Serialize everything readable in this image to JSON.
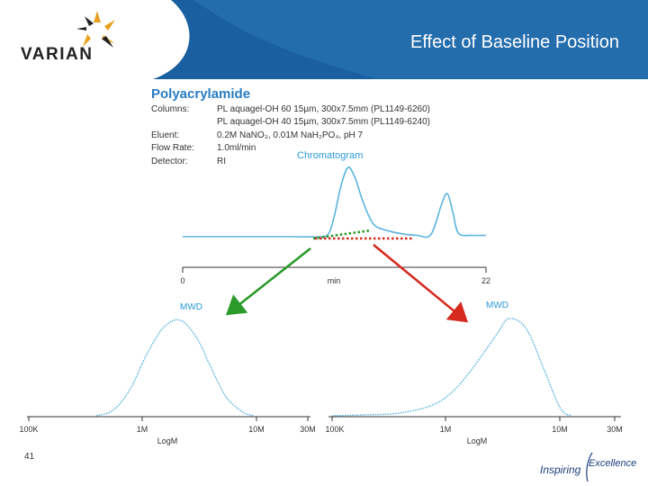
{
  "slide": {
    "title": "Effect of Baseline Position",
    "logo_text": "VARIAN",
    "page_number": "41",
    "footer_logo_word1": "Inspiring",
    "footer_logo_word2": "Excellence"
  },
  "info": {
    "title": "Polyacrylamide",
    "rows": [
      {
        "label": "Columns:",
        "value": "PL aquagel-OH 60 15µm, 300x7.5mm (PL1149-6260)"
      },
      {
        "label": "",
        "value": "PL aquagel-OH 40 15µm, 300x7.5mm (PL1149-6240)"
      },
      {
        "label": "Eluent:",
        "value": "0.2M NaNO₃, 0.01M NaH₂PO₄, pH 7"
      },
      {
        "label": "Flow Rate:",
        "value": "1.0ml/min"
      },
      {
        "label": "Detector:",
        "value": "RI"
      }
    ]
  },
  "colors": {
    "header_blue": "#1a5fa0",
    "trace_blue": "#5ab4e0",
    "title_blue": "#2a7cc0",
    "label_blue": "#2a9ad8",
    "green_arrow": "#2a9a2a",
    "red_arrow": "#d62a1e"
  },
  "chart_data": [
    {
      "type": "line",
      "title": "Chromatogram",
      "xlabel": "min",
      "xlim": [
        0,
        22
      ],
      "x_ticks": [
        "0",
        "22"
      ],
      "series": [
        {
          "x": [
            0,
            4,
            8,
            10,
            10.6,
            11,
            11.5,
            12,
            12.5,
            13,
            13.5,
            14,
            15,
            16,
            17,
            18,
            18.8,
            19.2,
            19.6,
            20,
            21,
            22
          ],
          "y": [
            0.0,
            0.0,
            0.0,
            0.0,
            0.05,
            0.3,
            0.75,
            1.0,
            0.85,
            0.55,
            0.3,
            0.15,
            0.08,
            0.04,
            0.02,
            0.03,
            0.48,
            0.62,
            0.35,
            0.05,
            0.02,
            0.02
          ]
        }
      ],
      "annotations": [
        "green dotted baseline",
        "red dotted baseline"
      ]
    },
    {
      "type": "line",
      "title": "MWD",
      "xlabel": "LogM",
      "x_ticks": [
        "100K",
        "1M",
        "10M",
        "30M"
      ],
      "xlim": [
        5,
        7.477
      ],
      "series": [
        {
          "x": [
            5.6,
            5.75,
            5.9,
            6.05,
            6.2,
            6.35,
            6.5,
            6.6,
            6.75,
            6.9,
            7.0
          ],
          "y": [
            0.0,
            0.06,
            0.28,
            0.65,
            0.93,
            1.0,
            0.8,
            0.55,
            0.2,
            0.04,
            0.0
          ]
        }
      ]
    },
    {
      "type": "line",
      "title": "MWD",
      "xlabel": "LogM",
      "x_ticks": [
        "100K",
        "1M",
        "10M",
        "30M"
      ],
      "xlim": [
        5,
        7.477
      ],
      "series": [
        {
          "x": [
            5.0,
            5.3,
            5.6,
            5.9,
            6.1,
            6.3,
            6.45,
            6.55,
            6.7,
            6.85,
            7.0,
            7.1
          ],
          "y": [
            0.0,
            0.01,
            0.03,
            0.12,
            0.3,
            0.6,
            0.85,
            1.0,
            0.9,
            0.5,
            0.08,
            0.0
          ]
        }
      ]
    }
  ]
}
